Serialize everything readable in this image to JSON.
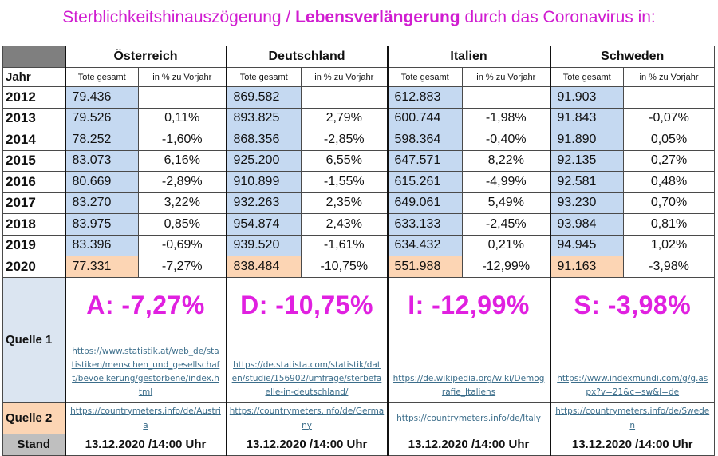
{
  "title": {
    "part1": "Sterblichkeitshinauszögerung / ",
    "part2": "Lebensverlängerung",
    "part3": " durch das Coronavirus in:"
  },
  "countries": [
    "Österreich",
    "Deutschland",
    "Italien",
    "Schweden"
  ],
  "header": {
    "jahr": "Jahr",
    "tote": "Tote gesamt",
    "pct": "in % zu Vorjahr"
  },
  "rows": [
    {
      "year": "2012",
      "v": [
        "79.436",
        "",
        "869.582",
        "",
        "612.883",
        "",
        "91.903",
        ""
      ]
    },
    {
      "year": "2013",
      "v": [
        "79.526",
        "0,11%",
        "893.825",
        "2,79%",
        "600.744",
        "-1,98%",
        "91.843",
        "-0,07%"
      ]
    },
    {
      "year": "2014",
      "v": [
        "78.252",
        "-1,60%",
        "868.356",
        "-2,85%",
        "598.364",
        "-0,40%",
        "91.890",
        "0,05%"
      ]
    },
    {
      "year": "2015",
      "v": [
        "83.073",
        "6,16%",
        "925.200",
        "6,55%",
        "647.571",
        "8,22%",
        "92.135",
        "0,27%"
      ]
    },
    {
      "year": "2016",
      "v": [
        "80.669",
        "-2,89%",
        "910.899",
        "-1,55%",
        "615.261",
        "-4,99%",
        "92.581",
        "0,48%"
      ]
    },
    {
      "year": "2017",
      "v": [
        "83.270",
        "3,22%",
        "932.263",
        "2,35%",
        "649.061",
        "5,49%",
        "93.230",
        "0,70%"
      ]
    },
    {
      "year": "2018",
      "v": [
        "83.975",
        "0,85%",
        "954.874",
        "2,43%",
        "633.133",
        "-2,45%",
        "93.984",
        "0,81%"
      ]
    },
    {
      "year": "2019",
      "v": [
        "83.396",
        "-0,69%",
        "939.520",
        "-1,61%",
        "634.432",
        "0,21%",
        "94.945",
        "1,02%"
      ]
    },
    {
      "year": "2020",
      "v": [
        "77.331",
        "-7,27%",
        "838.484",
        "-10,75%",
        "551.988",
        "-12,99%",
        "91.163",
        "-3,98%"
      ]
    }
  ],
  "quelle1": {
    "label": "Quelle 1",
    "big": [
      "A: -7,27%",
      "D: -10,75%",
      "I: -12,99%",
      "S: -3,98%"
    ],
    "links": [
      "https://www.statistik.at/web_de/statistiken/menschen_und_gesellschaft/bevoelkerung/gestorbene/index.html",
      "https://de.statista.com/statistik/daten/studie/156902/umfrage/sterbefaelle-in-deutschland/",
      "https://de.wikipedia.org/wiki/Demografie_Italiens",
      "https://www.indexmundi.com/g/g.aspx?v=21&c=sw&l=de"
    ]
  },
  "quelle2": {
    "label": "Quelle 2",
    "links": [
      "https://countrymeters.info/de/Austria",
      "https://countrymeters.info/de/Germany",
      "https://countrymeters.info/de/Italy",
      "https://countrymeters.info/de/Sweden"
    ]
  },
  "stand": {
    "label": "Stand",
    "dates": [
      "13.12.2020 /14:00 Uhr",
      "13.12.2020 /14:00 Uhr",
      "13.12.2020 /14:00 Uhr",
      "13.12.2020 /14:00 Uhr"
    ]
  },
  "colors": {
    "title": "#d01cd0",
    "blue": "#c5d9f1",
    "orange": "#fcd5b4",
    "big": "#e020e0",
    "link": "#3b6d8a"
  }
}
